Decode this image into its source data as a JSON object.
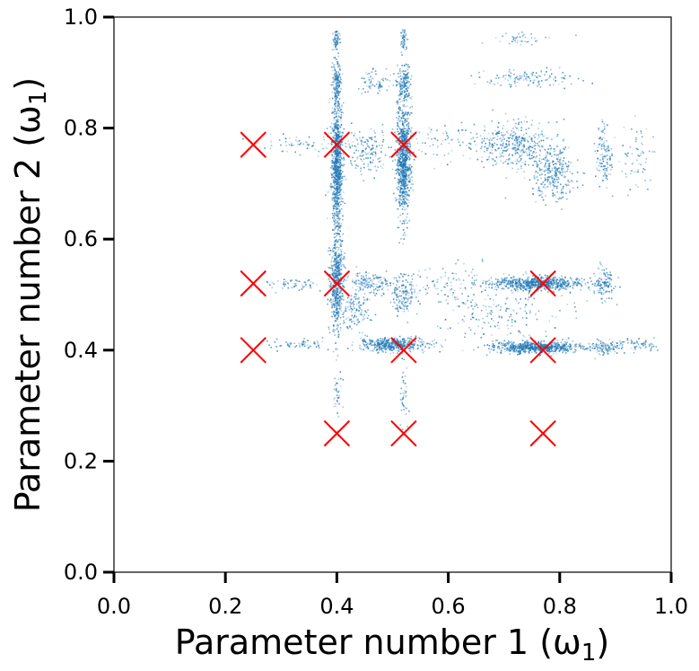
{
  "chart_data": {
    "type": "scatter",
    "title": "",
    "xlabel": "Parameter number 1 (ω",
    "xlabel_sub": "1",
    "xlabel_close": ")",
    "ylabel": "Parameter number 2 (ω",
    "ylabel_sub": "1",
    "ylabel_close": ")",
    "xlim": [
      0.0,
      1.0
    ],
    "ylim": [
      0.0,
      1.0
    ],
    "xticks": [
      "0.0",
      "0.2",
      "0.4",
      "0.6",
      "0.8",
      "1.0"
    ],
    "yticks": [
      "0.0",
      "0.2",
      "0.4",
      "0.6",
      "0.8",
      "1.0"
    ],
    "grid": false,
    "colors": {
      "scatter": "#1f77b4",
      "markers": "#ff0000"
    },
    "markers": {
      "symbol": "x",
      "points": [
        [
          0.25,
          0.77
        ],
        [
          0.4,
          0.77
        ],
        [
          0.52,
          0.77
        ],
        [
          0.25,
          0.52
        ],
        [
          0.4,
          0.52
        ],
        [
          0.77,
          0.52
        ],
        [
          0.25,
          0.4
        ],
        [
          0.52,
          0.4
        ],
        [
          0.77,
          0.4
        ],
        [
          0.4,
          0.25
        ],
        [
          0.52,
          0.25
        ],
        [
          0.77,
          0.25
        ]
      ]
    },
    "scatter_clusters": [
      {
        "x": 0.4,
        "y": 0.73,
        "sx": 0.005,
        "sy": 0.06,
        "n": 900
      },
      {
        "x": 0.52,
        "y": 0.74,
        "sx": 0.006,
        "sy": 0.05,
        "n": 900
      },
      {
        "x": 0.4,
        "y": 0.88,
        "sx": 0.004,
        "sy": 0.02,
        "n": 160
      },
      {
        "x": 0.4,
        "y": 0.96,
        "sx": 0.003,
        "sy": 0.01,
        "n": 60
      },
      {
        "x": 0.52,
        "y": 0.88,
        "sx": 0.006,
        "sy": 0.02,
        "n": 160
      },
      {
        "x": 0.52,
        "y": 0.96,
        "sx": 0.003,
        "sy": 0.01,
        "n": 50
      },
      {
        "x": 0.47,
        "y": 0.88,
        "sx": 0.015,
        "sy": 0.01,
        "n": 60
      },
      {
        "x": 0.455,
        "y": 0.76,
        "sx": 0.02,
        "sy": 0.02,
        "n": 150
      },
      {
        "x": 0.4,
        "y": 0.52,
        "sx": 0.006,
        "sy": 0.04,
        "n": 500
      },
      {
        "x": 0.52,
        "y": 0.5,
        "sx": 0.01,
        "sy": 0.02,
        "n": 150
      },
      {
        "x": 0.46,
        "y": 0.52,
        "sx": 0.02,
        "sy": 0.01,
        "n": 150
      },
      {
        "x": 0.43,
        "y": 0.47,
        "sx": 0.015,
        "sy": 0.015,
        "n": 120
      },
      {
        "x": 0.5,
        "y": 0.41,
        "sx": 0.03,
        "sy": 0.006,
        "n": 450
      },
      {
        "x": 0.76,
        "y": 0.405,
        "sx": 0.04,
        "sy": 0.005,
        "n": 700
      },
      {
        "x": 0.76,
        "y": 0.52,
        "sx": 0.04,
        "sy": 0.006,
        "n": 700
      },
      {
        "x": 0.72,
        "y": 0.77,
        "sx": 0.03,
        "sy": 0.02,
        "n": 350
      },
      {
        "x": 0.79,
        "y": 0.72,
        "sx": 0.02,
        "sy": 0.025,
        "n": 300
      },
      {
        "x": 0.88,
        "y": 0.52,
        "sx": 0.01,
        "sy": 0.015,
        "n": 120
      },
      {
        "x": 0.88,
        "y": 0.405,
        "sx": 0.015,
        "sy": 0.006,
        "n": 100
      },
      {
        "x": 0.88,
        "y": 0.75,
        "sx": 0.008,
        "sy": 0.03,
        "n": 120
      },
      {
        "x": 0.94,
        "y": 0.41,
        "sx": 0.02,
        "sy": 0.005,
        "n": 60
      },
      {
        "x": 0.94,
        "y": 0.75,
        "sx": 0.015,
        "sy": 0.03,
        "n": 60
      },
      {
        "x": 0.75,
        "y": 0.89,
        "sx": 0.04,
        "sy": 0.008,
        "n": 120
      },
      {
        "x": 0.73,
        "y": 0.96,
        "sx": 0.03,
        "sy": 0.006,
        "n": 40
      },
      {
        "x": 0.7,
        "y": 0.47,
        "sx": 0.05,
        "sy": 0.03,
        "n": 200
      },
      {
        "x": 0.4,
        "y": 0.32,
        "sx": 0.004,
        "sy": 0.03,
        "n": 40
      },
      {
        "x": 0.52,
        "y": 0.32,
        "sx": 0.004,
        "sy": 0.03,
        "n": 40
      },
      {
        "x": 0.33,
        "y": 0.41,
        "sx": 0.03,
        "sy": 0.005,
        "n": 60
      },
      {
        "x": 0.33,
        "y": 0.52,
        "sx": 0.03,
        "sy": 0.006,
        "n": 60
      },
      {
        "x": 0.33,
        "y": 0.77,
        "sx": 0.04,
        "sy": 0.01,
        "n": 60
      },
      {
        "x": 0.6,
        "y": 0.77,
        "sx": 0.04,
        "sy": 0.02,
        "n": 80
      },
      {
        "x": 0.6,
        "y": 0.52,
        "sx": 0.03,
        "sy": 0.02,
        "n": 80
      }
    ]
  }
}
